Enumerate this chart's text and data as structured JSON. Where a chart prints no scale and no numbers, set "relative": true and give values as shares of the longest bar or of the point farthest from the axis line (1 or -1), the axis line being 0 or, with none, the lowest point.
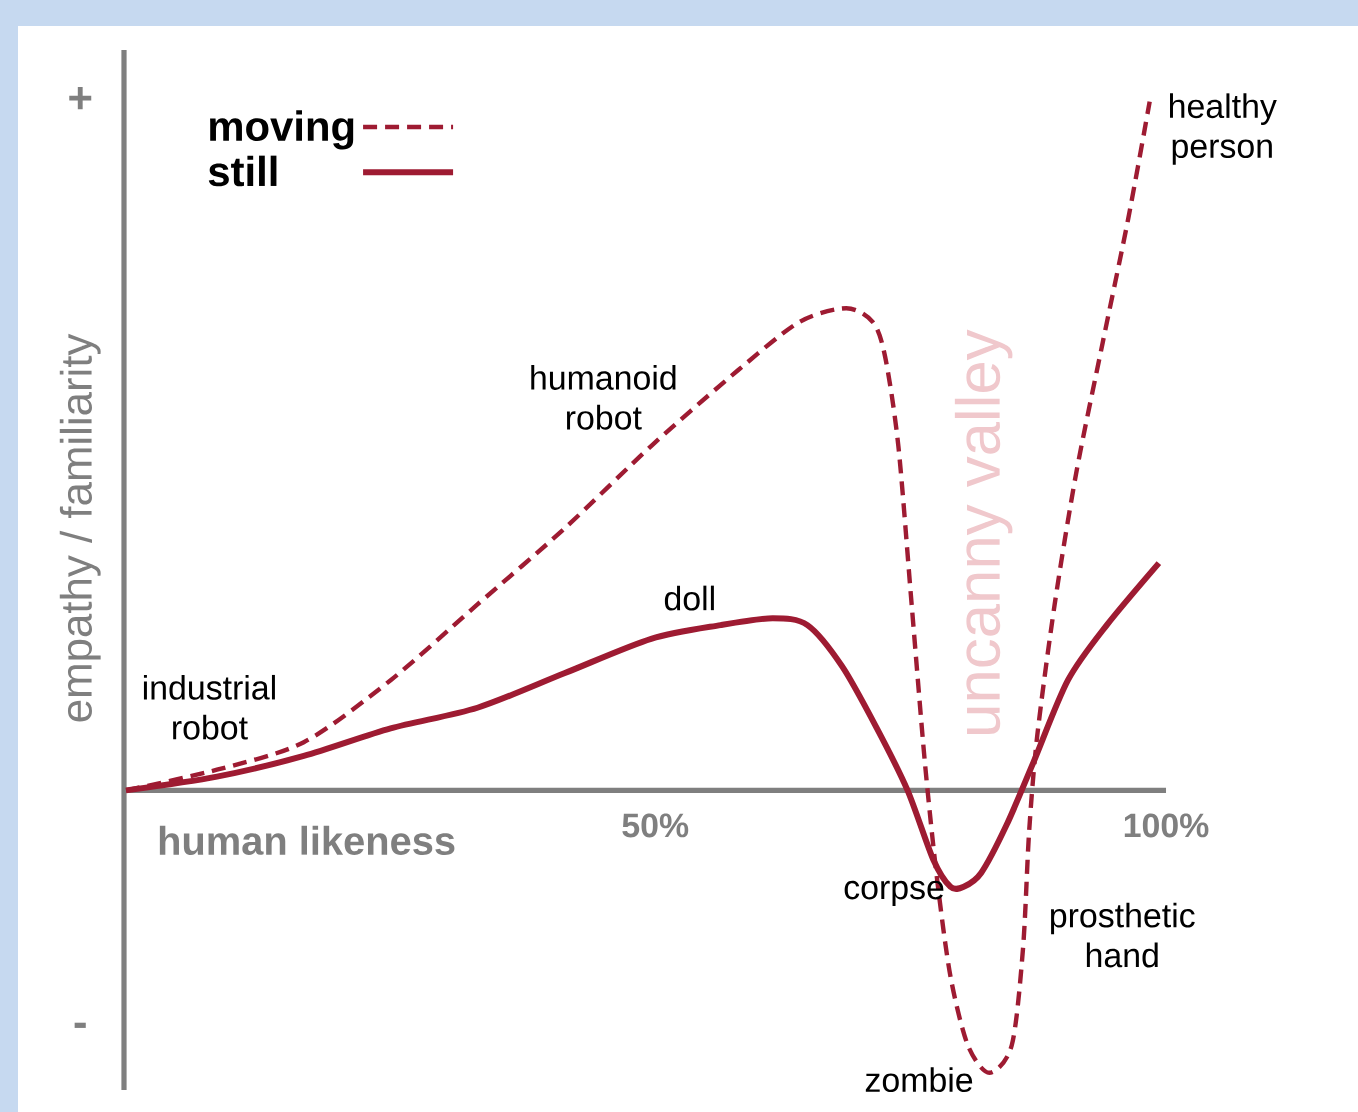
{
  "chart_data": {
    "type": "line",
    "xlabel": "human likeness",
    "ylabel": "empathy / familiarity",
    "relative": true,
    "legend": "top left",
    "xlim": [
      -2,
      100
    ],
    "xticks": [
      {
        "value": 50,
        "label": "50%"
      },
      {
        "value": 100,
        "label": "100%"
      }
    ],
    "series": [
      {
        "name": "moving",
        "color": "#9e1b32",
        "line_style": "dashed",
        "x": [
          -1.8,
          7.1,
          15.6,
          24.1,
          32.6,
          41.1,
          49.6,
          58.1,
          64.1,
          68.7,
          71.3,
          72.5,
          73.8,
          75.1,
          76.4,
          77.6,
          78.9,
          80.6,
          82.7,
          84.9,
          86.0,
          86.6,
          87.4,
          89.1,
          91.2,
          93.8,
          96.3,
          98.4
        ],
        "values": [
          0,
          0.03,
          0.07,
          0.16,
          0.27,
          0.38,
          0.5,
          0.61,
          0.68,
          0.7,
          0.68,
          0.63,
          0.5,
          0.27,
          0.04,
          -0.13,
          -0.27,
          -0.37,
          -0.41,
          -0.37,
          -0.23,
          -0.06,
          0.08,
          0.27,
          0.46,
          0.65,
          0.83,
          1.0
        ]
      },
      {
        "name": "still",
        "color": "#9e1b32",
        "line_style": "solid",
        "x": [
          -1.8,
          7.1,
          15.6,
          24.1,
          32.6,
          41.1,
          49.6,
          56.4,
          61.5,
          64.9,
          68.3,
          71.7,
          74.7,
          77.2,
          78.9,
          80.2,
          81.9,
          84.4,
          87.0,
          90.4,
          94.2,
          99.3
        ],
        "values": [
          0,
          0.02,
          0.05,
          0.09,
          0.12,
          0.17,
          0.22,
          0.24,
          0.25,
          0.24,
          0.18,
          0.09,
          0,
          -0.1,
          -0.14,
          -0.14,
          -0.12,
          -0.05,
          0.04,
          0.16,
          0.24,
          0.33
        ]
      }
    ],
    "annotations": [
      "industrial robot",
      "humanoid robot",
      "doll",
      "corpse",
      "zombie",
      "prosthetic hand",
      "healthy person",
      "+",
      "-",
      "uncanny valley"
    ]
  }
}
